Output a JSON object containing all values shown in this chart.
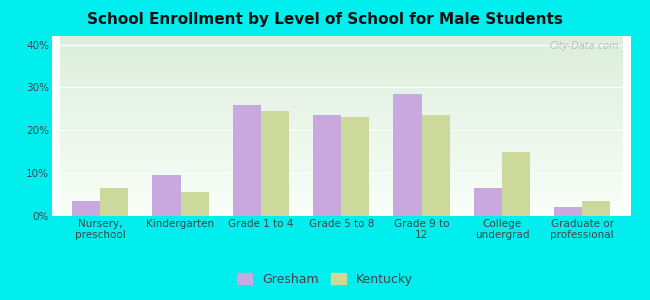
{
  "title": "School Enrollment by Level of School for Male Students",
  "categories": [
    "Nursery,\npreschool",
    "Kindergarten",
    "Grade 1 to 4",
    "Grade 5 to 8",
    "Grade 9 to\n12",
    "College\nundergrad",
    "Graduate or\nprofessional"
  ],
  "gresham": [
    3.5,
    9.5,
    26.0,
    23.5,
    28.5,
    6.5,
    2.0
  ],
  "kentucky": [
    6.5,
    5.5,
    24.5,
    23.0,
    23.5,
    15.0,
    3.5
  ],
  "gresham_color": "#c9a8e0",
  "kentucky_color": "#ccd99a",
  "background_color": "#00EEEE",
  "plot_bg_top": "#ddeedd",
  "plot_bg_bottom": "#f8fff8",
  "ylabel_ticks": [
    "0%",
    "10%",
    "20%",
    "30%",
    "40%"
  ],
  "yticks": [
    0,
    10,
    20,
    30,
    40
  ],
  "ylim": [
    0,
    42
  ],
  "title_fontsize": 11,
  "tick_fontsize": 7.5,
  "legend_fontsize": 9,
  "bar_width": 0.35,
  "watermark": "City-Data.com"
}
